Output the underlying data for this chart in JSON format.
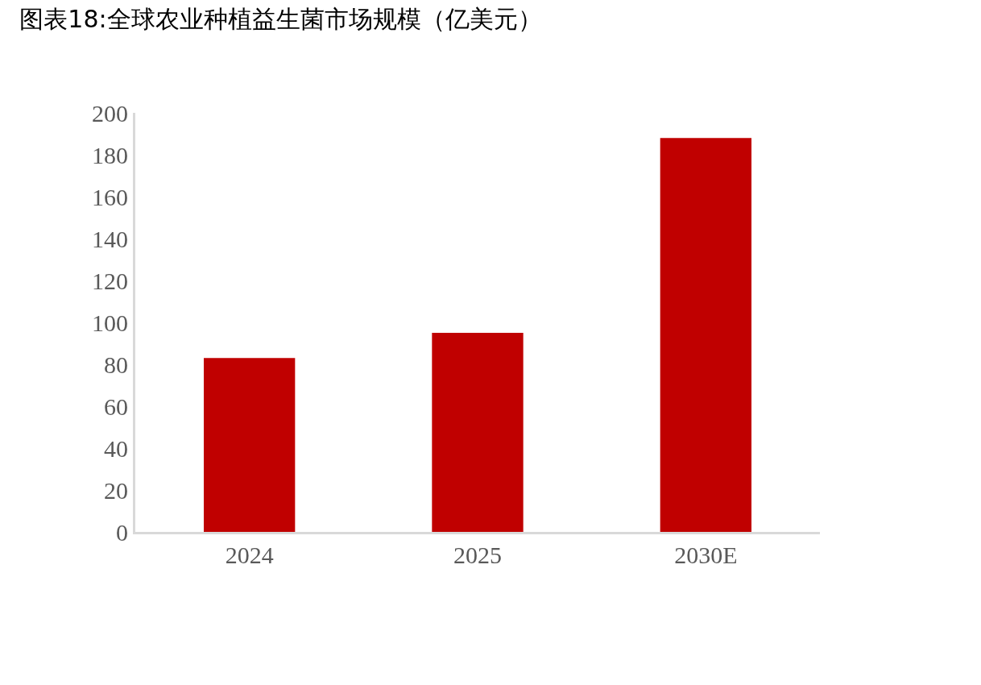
{
  "chart_data": {
    "type": "bar",
    "title": "图表18:全球农业种植益生菌市场规模（亿美元）",
    "categories": [
      "2024",
      "2025",
      "2030E"
    ],
    "values": [
      83,
      95,
      188
    ],
    "color": "#c00000",
    "ylim": [
      0,
      200
    ],
    "yticks": [
      0,
      20,
      40,
      60,
      80,
      100,
      120,
      140,
      160,
      180,
      200
    ],
    "legend": false
  }
}
